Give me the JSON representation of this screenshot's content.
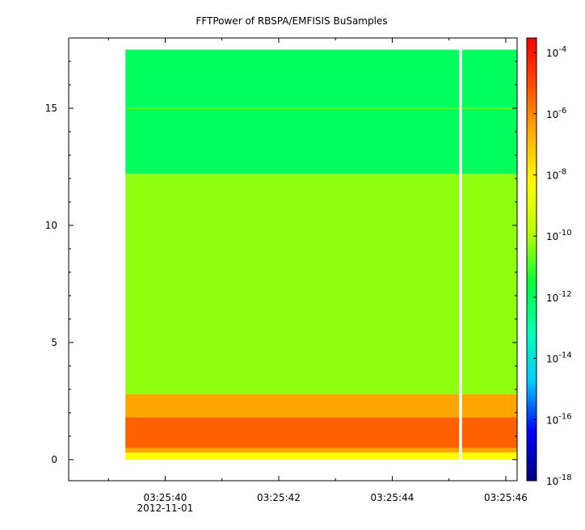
{
  "chart_data": {
    "type": "heatmap",
    "title": "FFTPower of RBSPA/EMFISIS  BuSamples",
    "xlabel": "",
    "ylabel": "",
    "x_ticks": [
      {
        "t": 40,
        "label": "03:25:40",
        "sublabel": "2012-11-01"
      },
      {
        "t": 42,
        "label": "03:25:42",
        "sublabel": ""
      },
      {
        "t": 44,
        "label": "03:25:44",
        "sublabel": ""
      },
      {
        "t": 46,
        "label": "03:25:46",
        "sublabel": ""
      }
    ],
    "x_minor_ticks": [
      39,
      41,
      43,
      45
    ],
    "xlim_seconds_after_03_25_00": [
      38.3,
      46.2
    ],
    "ylim": [
      -0.9,
      18.0
    ],
    "y_ticks": [
      0,
      5,
      10,
      15
    ],
    "data_x_range_seconds": [
      39.3,
      46.2
    ],
    "data_y_range": [
      0,
      17.5
    ],
    "gap_at_seconds": 45.2,
    "colorbar": {
      "scale": "log",
      "range": [
        1e-18,
        0.0003
      ],
      "ticks": [
        {
          "base": "10",
          "exp": "-4"
        },
        {
          "base": "10",
          "exp": "-6"
        },
        {
          "base": "10",
          "exp": "-8"
        },
        {
          "base": "10",
          "exp": "-10"
        },
        {
          "base": "10",
          "exp": "-12"
        },
        {
          "base": "10",
          "exp": "-14"
        },
        {
          "base": "10",
          "exp": "-16"
        },
        {
          "base": "10",
          "exp": "-18"
        }
      ],
      "colors": [
        "#000080",
        "#0000ff",
        "#00c8ff",
        "#00ffb4",
        "#00ff3c",
        "#b4ff00",
        "#ffff00",
        "#ffb400",
        "#ff5000",
        "#ff0000"
      ]
    },
    "bands": [
      {
        "y_range": [
          12.2,
          17.5
        ],
        "log10_power": -12.0
      },
      {
        "y_range": [
          2.8,
          12.2
        ],
        "log10_power": -10.3
      },
      {
        "y_range": [
          0.3,
          2.8
        ],
        "log10_power": -6.5
      },
      {
        "y_range": [
          0.0,
          0.3
        ],
        "log10_power": -8.3
      }
    ],
    "line_at_y": 15
  }
}
